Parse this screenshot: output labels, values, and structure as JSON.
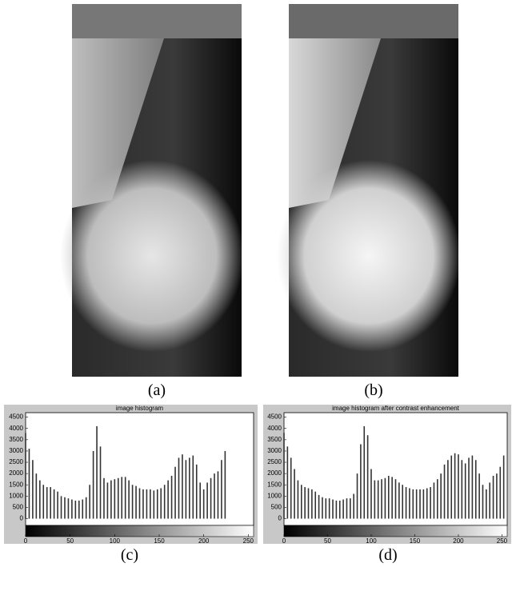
{
  "captions": [
    "(a)",
    "(b)",
    "(c)",
    "(d)"
  ],
  "chart_data": [
    {
      "type": "bar",
      "title": "image histogram",
      "color": "#333333",
      "x": [
        0,
        4,
        8,
        12,
        16,
        20,
        24,
        28,
        32,
        36,
        40,
        44,
        48,
        52,
        56,
        60,
        64,
        68,
        72,
        76,
        80,
        84,
        88,
        92,
        96,
        100,
        104,
        108,
        112,
        116,
        120,
        124,
        128,
        132,
        136,
        140,
        144,
        148,
        152,
        156,
        160,
        164,
        168,
        172,
        176,
        180,
        184,
        188,
        192,
        196,
        200,
        204,
        208,
        212,
        216,
        220,
        224,
        228,
        232,
        236,
        240,
        244,
        248,
        252
      ],
      "values": [
        3800,
        3100,
        2600,
        2000,
        1700,
        1500,
        1400,
        1400,
        1300,
        1200,
        1000,
        950,
        900,
        850,
        800,
        800,
        850,
        950,
        1500,
        3000,
        4100,
        3200,
        1800,
        1600,
        1700,
        1750,
        1800,
        1850,
        1850,
        1700,
        1500,
        1450,
        1350,
        1300,
        1300,
        1300,
        1250,
        1300,
        1350,
        1500,
        1700,
        1900,
        2300,
        2700,
        2850,
        2600,
        2700,
        2800,
        2400,
        1600,
        1300,
        1600,
        1800,
        2000,
        2100,
        2600,
        3000,
        0,
        0,
        0,
        0,
        0,
        0,
        0
      ],
      "xlim": [
        0,
        256
      ],
      "ylim": [
        -300,
        4700
      ],
      "xticks": [
        0,
        50,
        100,
        150,
        200,
        250
      ],
      "yticks": [
        0,
        500,
        1000,
        1500,
        2000,
        2500,
        3000,
        3500,
        4000,
        4500
      ]
    },
    {
      "type": "bar",
      "title": "image histogram after contrast enhancement",
      "color": "#333333",
      "x": [
        0,
        4,
        8,
        12,
        16,
        20,
        24,
        28,
        32,
        36,
        40,
        44,
        48,
        52,
        56,
        60,
        64,
        68,
        72,
        76,
        80,
        84,
        88,
        92,
        96,
        100,
        104,
        108,
        112,
        116,
        120,
        124,
        128,
        132,
        136,
        140,
        144,
        148,
        152,
        156,
        160,
        164,
        168,
        172,
        176,
        180,
        184,
        188,
        192,
        196,
        200,
        204,
        208,
        212,
        216,
        220,
        224,
        228,
        232,
        236,
        240,
        244,
        248,
        252
      ],
      "values": [
        3800,
        3200,
        2700,
        2200,
        1700,
        1500,
        1400,
        1350,
        1300,
        1200,
        1050,
        950,
        900,
        900,
        850,
        800,
        800,
        850,
        900,
        900,
        1100,
        2000,
        3300,
        4100,
        3700,
        2200,
        1700,
        1700,
        1750,
        1800,
        1900,
        1850,
        1750,
        1600,
        1500,
        1400,
        1350,
        1300,
        1300,
        1300,
        1300,
        1350,
        1400,
        1600,
        1750,
        2000,
        2400,
        2600,
        2800,
        2900,
        2850,
        2600,
        2450,
        2700,
        2800,
        2600,
        2000,
        1500,
        1300,
        1600,
        1900,
        2000,
        2300,
        2800
      ],
      "xlim": [
        0,
        256
      ],
      "ylim": [
        -300,
        4700
      ],
      "xticks": [
        0,
        50,
        100,
        150,
        200,
        250
      ],
      "yticks": [
        0,
        500,
        1000,
        1500,
        2000,
        2500,
        3000,
        3500,
        4000,
        4500
      ]
    }
  ]
}
